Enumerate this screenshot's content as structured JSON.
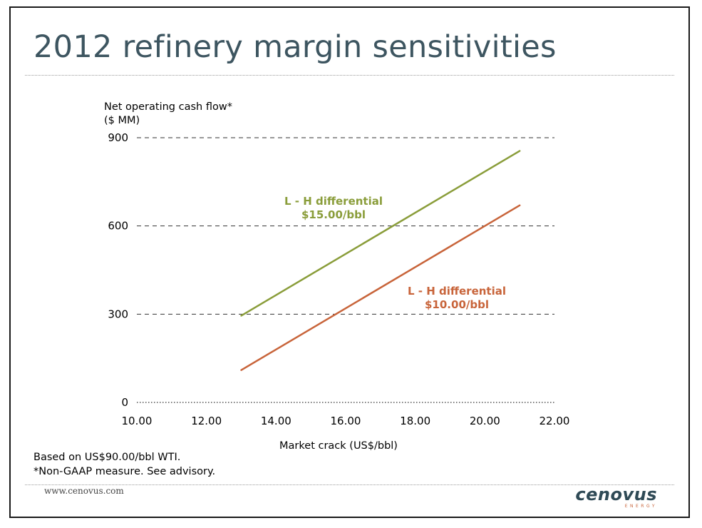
{
  "title": "2012 refinery margin sensitivities",
  "chart_data": {
    "type": "line",
    "ylabel_line1": "Net operating cash flow*",
    "ylabel_line2": "($ MM)",
    "xlabel": "Market crack (US$/bbl)",
    "xlim": [
      10,
      22
    ],
    "ylim": [
      0,
      900
    ],
    "x_ticks": [
      "10.00",
      "12.00",
      "14.00",
      "16.00",
      "18.00",
      "20.00",
      "22.00"
    ],
    "y_ticks": [
      "0",
      "300",
      "600",
      "900"
    ],
    "gridlines": [
      300,
      600,
      900
    ],
    "series": [
      {
        "name_line1": "L - H differential",
        "name_line2": "$15.00/bbl",
        "color": "#8a9d3a",
        "x": [
          13,
          21
        ],
        "y": [
          295,
          855
        ]
      },
      {
        "name_line1": "L - H differential",
        "name_line2": "$10.00/bbl",
        "color": "#c8643a",
        "x": [
          13,
          21
        ],
        "y": [
          110,
          670
        ]
      }
    ]
  },
  "footnotes": [
    "Based on US$90.00/bbl WTI.",
    "*Non-GAAP measure. See advisory."
  ],
  "footer": {
    "url": "www.cenovus.com",
    "logo_word": "cenovus",
    "logo_sub": "ENERGY"
  },
  "colors": {
    "title": "#3d5560",
    "grid": "#333333"
  }
}
